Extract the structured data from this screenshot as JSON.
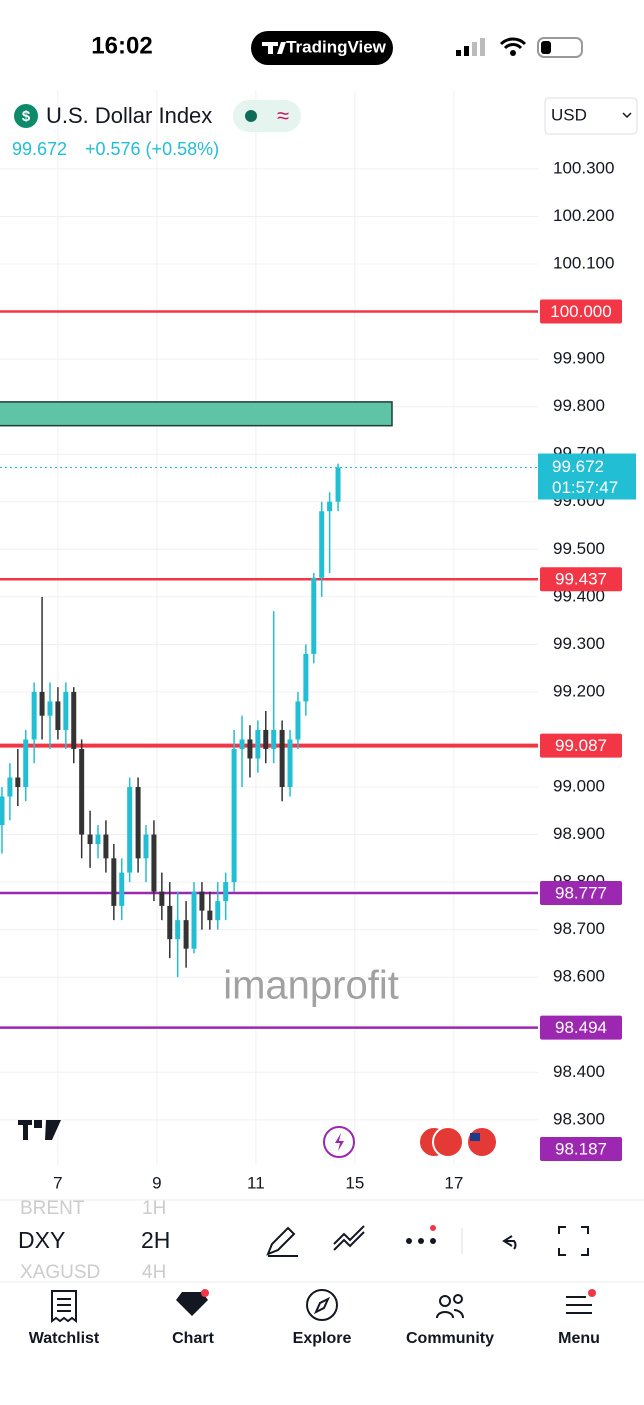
{
  "status_bar": {
    "time": "16:02",
    "app": "TradingView"
  },
  "header": {
    "change": "+0.576 (+0.58%)",
    "currency": "USD"
  },
  "watermark": "imanprofit",
  "chart_data": {
    "type": "candlestick",
    "title": "U.S. Dollar Index",
    "x": [
      5.87,
      6.03,
      6.19,
      6.35,
      6.52,
      6.68,
      6.84,
      7.0,
      7.16,
      7.32,
      7.48,
      7.65,
      7.81,
      7.97,
      8.13,
      8.29,
      8.45,
      8.62,
      8.78,
      8.94,
      9.1,
      9.26,
      9.42,
      9.59,
      9.75,
      9.91,
      10.07,
      10.23,
      10.39,
      10.56,
      10.72,
      10.88,
      11.04,
      11.2,
      11.36,
      11.53,
      11.69,
      11.85,
      12.01,
      12.17,
      12.33,
      12.49,
      12.66
    ],
    "open": [
      98.92,
      98.98,
      99.02,
      99.0,
      99.1,
      99.2,
      99.15,
      99.18,
      99.12,
      99.2,
      99.08,
      98.9,
      98.88,
      98.9,
      98.85,
      98.75,
      98.82,
      99.0,
      98.85,
      98.9,
      98.78,
      98.75,
      98.68,
      98.72,
      98.66,
      98.78,
      98.74,
      98.72,
      98.76,
      98.8,
      99.08,
      99.1,
      99.06,
      99.12,
      99.08,
      99.12,
      99.0,
      99.1,
      99.18,
      99.28,
      99.44,
      99.58,
      99.6
    ],
    "high": [
      99.0,
      99.05,
      99.08,
      99.12,
      99.22,
      99.4,
      99.22,
      99.21,
      99.22,
      99.21,
      99.1,
      98.95,
      98.92,
      98.93,
      98.88,
      98.85,
      99.02,
      99.02,
      98.92,
      98.93,
      98.82,
      98.8,
      98.78,
      98.76,
      98.8,
      98.8,
      98.78,
      98.8,
      98.82,
      99.12,
      99.15,
      99.13,
      99.14,
      99.16,
      99.37,
      99.14,
      99.12,
      99.2,
      99.3,
      99.45,
      99.6,
      99.62,
      99.68
    ],
    "low": [
      98.86,
      98.93,
      98.96,
      98.97,
      99.05,
      99.1,
      99.08,
      99.1,
      99.08,
      99.05,
      98.85,
      98.83,
      98.85,
      98.82,
      98.72,
      98.72,
      98.8,
      98.82,
      98.8,
      98.76,
      98.72,
      98.64,
      98.6,
      98.62,
      98.65,
      98.7,
      98.7,
      98.7,
      98.72,
      98.78,
      99.0,
      99.02,
      99.03,
      99.05,
      99.05,
      98.97,
      98.98,
      99.08,
      99.15,
      99.26,
      99.4,
      99.45,
      99.58
    ],
    "close": [
      98.98,
      99.02,
      99.0,
      99.1,
      99.2,
      99.15,
      99.18,
      99.12,
      99.2,
      99.08,
      98.9,
      98.88,
      98.9,
      98.85,
      98.75,
      98.82,
      99.0,
      98.85,
      98.9,
      98.78,
      98.75,
      98.68,
      98.72,
      98.66,
      98.78,
      98.74,
      98.72,
      98.76,
      98.8,
      99.08,
      99.1,
      99.06,
      99.12,
      99.08,
      99.12,
      99.0,
      99.1,
      99.18,
      99.28,
      99.44,
      99.58,
      99.6,
      99.672
    ],
    "up_color": "#22bfd4",
    "down_color": "#333333",
    "xlim": [
      5.83,
      16.7
    ],
    "xticks": [
      7,
      9,
      11,
      {
        "value": 13,
        "label": "15"
      },
      {
        "value": 15,
        "label": "17"
      }
    ],
    "ylim": [
      98.205,
      100.466
    ],
    "yticks": [
      {
        "value": 100.3,
        "label": "100.300"
      },
      {
        "value": 100.2,
        "label": "100.200"
      },
      {
        "value": 100.1,
        "label": "100.100"
      },
      {
        "value": 99.9,
        "label": "99.900"
      },
      {
        "value": 99.8,
        "label": "99.800"
      },
      {
        "value": 99.7,
        "label": "99.700"
      },
      {
        "value": 99.6,
        "label": "99.600"
      },
      {
        "value": 99.5,
        "label": "99.500"
      },
      {
        "value": 99.4,
        "label": "99.400"
      },
      {
        "value": 99.3,
        "label": "99.300"
      },
      {
        "value": 99.2,
        "label": "99.200"
      },
      {
        "value": 99.0,
        "label": "99.000"
      },
      {
        "value": 98.9,
        "label": "98.900"
      },
      {
        "value": 98.8,
        "label": "98.800"
      },
      {
        "value": 98.7,
        "label": "98.700"
      },
      {
        "value": 98.6,
        "label": "98.600"
      },
      {
        "value": 98.4,
        "label": "98.400"
      },
      {
        "value": 98.3,
        "label": "98.300"
      }
    ],
    "grid": true,
    "price_lines": [
      {
        "value": 100.0,
        "label": "100.000",
        "color": "#f23645"
      },
      {
        "value": 99.437,
        "label": "99.437",
        "color": "#f23645"
      },
      {
        "value": 99.087,
        "label": "99.087",
        "color": "#f23645"
      },
      {
        "value": 98.777,
        "label": "98.777",
        "color": "#9c27b0"
      },
      {
        "value": 98.494,
        "label": "98.494",
        "color": "#9c27b0"
      },
      {
        "value": 98.187,
        "label": "98.187",
        "color": "#9c27b0"
      }
    ],
    "zone": {
      "top": 99.81,
      "bottom": 99.76,
      "x_end": 13.75,
      "color": "#5fc3a6"
    },
    "last": 99.672,
    "countdown": "01:57:47"
  },
  "toolbar": {
    "symbols": [
      "BRENT",
      "DXY",
      "XAGUSD"
    ],
    "intervals": [
      "1H",
      "2H",
      "4H"
    ]
  },
  "nav": [
    "Watchlist",
    "Chart",
    "Explore",
    "Community",
    "Menu"
  ]
}
